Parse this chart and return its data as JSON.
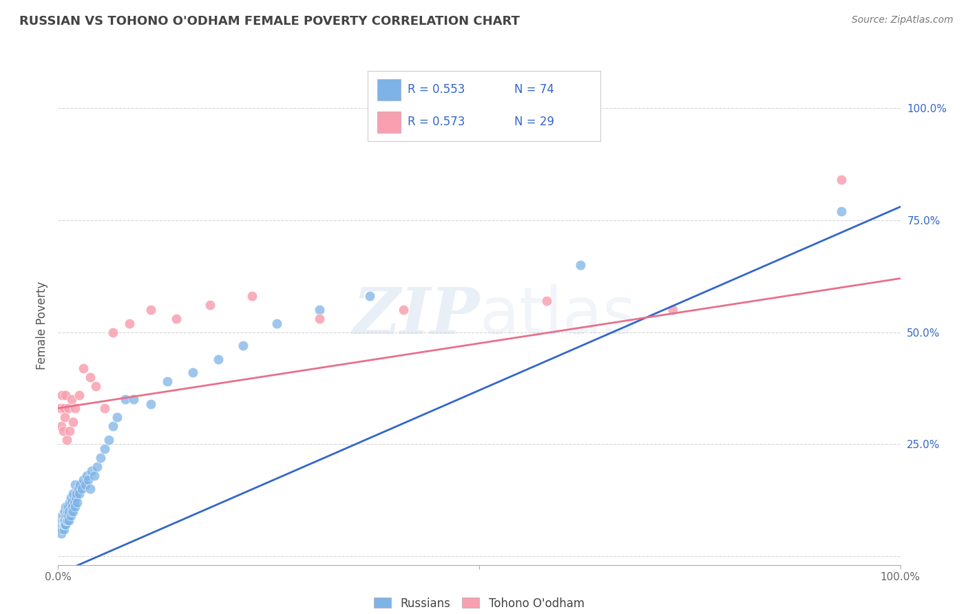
{
  "title": "RUSSIAN VS TOHONO O'ODHAM FEMALE POVERTY CORRELATION CHART",
  "source": "Source: ZipAtlas.com",
  "ylabel": "Female Poverty",
  "xlabel": "",
  "xlim": [
    0.0,
    1.0
  ],
  "ylim": [
    -0.02,
    1.05
  ],
  "background_color": "#ffffff",
  "grid_color": "#cccccc",
  "watermark": "ZIPatlas",
  "blue_color": "#7eb3e8",
  "pink_color": "#f8a0b0",
  "blue_line_color": "#3366cc",
  "pink_line_color": "#e8708a",
  "legend_text_color": "#3366cc",
  "title_color": "#444444",
  "russians_x": [
    0.003,
    0.003,
    0.004,
    0.004,
    0.004,
    0.005,
    0.005,
    0.005,
    0.005,
    0.006,
    0.006,
    0.006,
    0.007,
    0.007,
    0.007,
    0.007,
    0.008,
    0.008,
    0.008,
    0.009,
    0.009,
    0.009,
    0.01,
    0.01,
    0.01,
    0.011,
    0.011,
    0.012,
    0.012,
    0.013,
    0.013,
    0.014,
    0.015,
    0.015,
    0.016,
    0.016,
    0.017,
    0.018,
    0.018,
    0.019,
    0.02,
    0.02,
    0.021,
    0.022,
    0.023,
    0.024,
    0.025,
    0.026,
    0.028,
    0.03,
    0.032,
    0.034,
    0.036,
    0.038,
    0.04,
    0.043,
    0.046,
    0.05,
    0.055,
    0.06,
    0.065,
    0.07,
    0.08,
    0.09,
    0.11,
    0.13,
    0.16,
    0.19,
    0.22,
    0.26,
    0.31,
    0.37,
    0.62,
    0.93
  ],
  "russians_y": [
    0.06,
    0.07,
    0.05,
    0.07,
    0.08,
    0.06,
    0.07,
    0.08,
    0.09,
    0.07,
    0.08,
    0.09,
    0.06,
    0.07,
    0.08,
    0.1,
    0.07,
    0.08,
    0.1,
    0.07,
    0.09,
    0.11,
    0.08,
    0.09,
    0.11,
    0.08,
    0.1,
    0.09,
    0.11,
    0.08,
    0.1,
    0.12,
    0.09,
    0.13,
    0.1,
    0.12,
    0.11,
    0.1,
    0.14,
    0.12,
    0.11,
    0.16,
    0.13,
    0.14,
    0.12,
    0.15,
    0.14,
    0.16,
    0.15,
    0.17,
    0.16,
    0.18,
    0.17,
    0.15,
    0.19,
    0.18,
    0.2,
    0.22,
    0.24,
    0.26,
    0.29,
    0.31,
    0.35,
    0.35,
    0.34,
    0.39,
    0.41,
    0.44,
    0.47,
    0.52,
    0.55,
    0.58,
    0.65,
    0.77
  ],
  "tohono_x": [
    0.003,
    0.004,
    0.005,
    0.006,
    0.007,
    0.008,
    0.009,
    0.01,
    0.012,
    0.014,
    0.016,
    0.018,
    0.02,
    0.025,
    0.03,
    0.038,
    0.045,
    0.055,
    0.065,
    0.085,
    0.11,
    0.14,
    0.18,
    0.23,
    0.31,
    0.41,
    0.58,
    0.73,
    0.93
  ],
  "tohono_y": [
    0.33,
    0.29,
    0.36,
    0.28,
    0.33,
    0.31,
    0.36,
    0.26,
    0.33,
    0.28,
    0.35,
    0.3,
    0.33,
    0.36,
    0.42,
    0.4,
    0.38,
    0.33,
    0.5,
    0.52,
    0.55,
    0.53,
    0.56,
    0.58,
    0.53,
    0.55,
    0.57,
    0.55,
    0.84
  ],
  "blue_trend_x": [
    0.0,
    1.0
  ],
  "blue_trend_y": [
    -0.04,
    0.78
  ],
  "pink_trend_x": [
    0.0,
    1.0
  ],
  "pink_trend_y": [
    0.33,
    0.62
  ]
}
